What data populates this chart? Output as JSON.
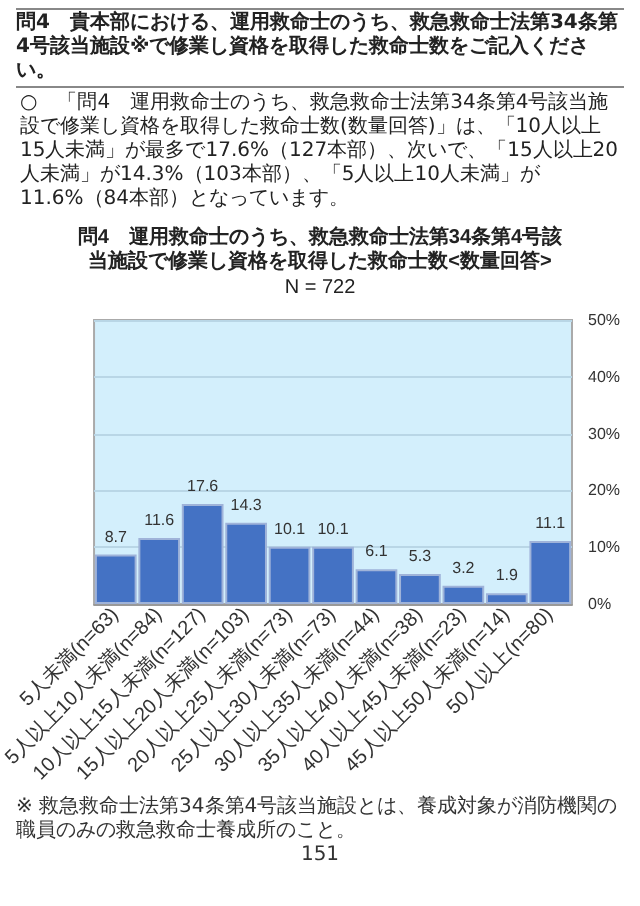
{
  "chart_data": {
    "type": "bar",
    "title": "問4　運用救命士のうち、救急救命士法第34条第4号該当施設で修業し資格を取得した救命士数<数量回答>",
    "subtitle": "N = 722",
    "categories": [
      "5人未満(n=63)",
      "5人以上10人未満(n=84)",
      "10人以上15人未満(n=127)",
      "15人以上20人未満(n=103)",
      "20人以上25人未満(n=73)",
      "25人以上30人未満(n=73)",
      "30人以上35人未満(n=44)",
      "35人以上40人未満(n=38)",
      "40人以上45人未満(n=23)",
      "45人以上50人未満(n=14)",
      "50人以上(n=80)"
    ],
    "values": [
      8.7,
      11.6,
      17.6,
      14.3,
      10.1,
      10.1,
      6.1,
      5.3,
      3.2,
      1.9,
      11.1
    ],
    "color": "#4472c4",
    "ylim": [
      0,
      50
    ],
    "yticks": [
      {
        "value": 0,
        "label": "0%"
      },
      {
        "value": 10,
        "label": "10%"
      },
      {
        "value": 20,
        "label": "20%"
      },
      {
        "value": 30,
        "label": "30%"
      },
      {
        "value": 40,
        "label": "40%"
      },
      {
        "value": 50,
        "label": "50%"
      }
    ],
    "grid": true,
    "data_labels": true,
    "annotations": [
      "問4　貴本部における、運用救命士のうち、救急救命士法第34条第4号該当施設※で修業し資格を取得した救命士数をご記入ください。",
      "○　「問4　運用救命士のうち、救急救命士法第34条第4号該当施設で修業し資格を取得した救命士数(数量回答)」は、「10人以上15人未満」が最多で17.6%（127本部）、次いで、「15人以上20人未満」が14.3%（103本部）、「5人以上10人未満」が11.6%（84本部）となっています。",
      "※ 救急救命士法第34条第4号該当施設とは、養成対象が消防機関の職員のみの救急救命士養成所のこと。",
      "151"
    ]
  }
}
